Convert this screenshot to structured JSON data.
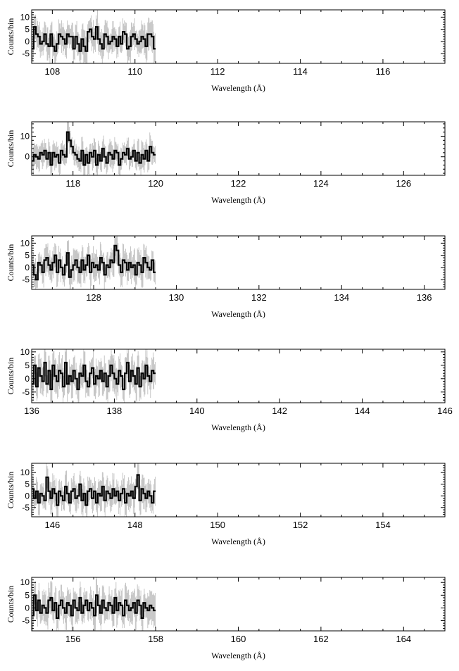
{
  "chart_data": [
    {
      "type": "line",
      "xlabel": "Wavelength (Å)",
      "ylabel": "Counts/bin",
      "xlim": [
        107.5,
        117.5
      ],
      "ylim": [
        -9,
        13
      ],
      "xticks": [
        108,
        110,
        112,
        114,
        116
      ],
      "yticks": [
        -5,
        0,
        5,
        10
      ],
      "x_start": 107.5,
      "bin": 0.05,
      "values": [
        -3,
        6,
        3,
        2,
        -1,
        0,
        3,
        -1,
        -2,
        3,
        -2,
        -4,
        -1,
        3,
        2,
        1,
        -1,
        3,
        2,
        2,
        -3,
        2,
        -1,
        -4,
        1,
        -2,
        -4,
        4,
        5,
        2,
        1,
        6,
        1,
        -1,
        -3,
        3,
        2,
        -1,
        0,
        2,
        1,
        -2,
        2,
        -1,
        4,
        3,
        -3,
        -2,
        2,
        3,
        1,
        -1,
        0,
        2,
        1,
        -2,
        3,
        3,
        2,
        -3
      ]
    },
    {
      "type": "line",
      "xlabel": "Wavelength (Å)",
      "ylabel": "Counts/bin",
      "xlim": [
        117,
        127
      ],
      "ylim": [
        -9,
        17
      ],
      "xticks": [
        118,
        120,
        122,
        124,
        126
      ],
      "yticks": [
        0,
        10
      ],
      "x_start": 117,
      "bin": 0.05,
      "values": [
        -2,
        1,
        0,
        -1,
        2,
        1,
        3,
        -1,
        2,
        -4,
        2,
        0,
        1,
        -3,
        3,
        1,
        0,
        12,
        8,
        5,
        2,
        1,
        -1,
        -2,
        3,
        -4,
        1,
        -3,
        2,
        0,
        3,
        -4,
        1,
        -2,
        4,
        0,
        -3,
        2,
        1,
        -1,
        3,
        2,
        -4,
        -1,
        2,
        1,
        4,
        -1,
        0,
        3,
        -2,
        2,
        -3,
        1,
        -1,
        3,
        -2,
        5,
        2,
        1
      ]
    },
    {
      "type": "line",
      "xlabel": "Wavelength (Å)",
      "ylabel": "Counts/bin",
      "xlim": [
        126.5,
        136.5
      ],
      "ylim": [
        -9,
        13
      ],
      "xticks": [
        128,
        130,
        132,
        134,
        136
      ],
      "yticks": [
        -5,
        0,
        5,
        10
      ],
      "x_start": 126.5,
      "bin": 0.05,
      "values": [
        1,
        -3,
        -5,
        2,
        1,
        -2,
        3,
        4,
        1,
        -1,
        2,
        5,
        -2,
        3,
        0,
        -3,
        1,
        6,
        -4,
        -1,
        1,
        3,
        0,
        -2,
        3,
        -1,
        1,
        5,
        -2,
        2,
        0,
        1,
        -1,
        4,
        2,
        -3,
        1,
        0,
        3,
        2,
        9,
        7,
        1,
        -2,
        3,
        2,
        -1,
        2,
        0,
        1,
        -3,
        2,
        1,
        -2,
        4,
        2,
        0,
        -1,
        3,
        -2
      ]
    },
    {
      "type": "line",
      "xlabel": "Wavelength (Å)",
      "ylabel": "Counts/bin",
      "xlim": [
        136,
        146
      ],
      "ylim": [
        -9,
        11
      ],
      "xticks": [
        136,
        138,
        140,
        142,
        144,
        146
      ],
      "yticks": [
        -5,
        0,
        5,
        10
      ],
      "x_start": 136,
      "bin": 0.05,
      "values": [
        -2,
        5,
        -3,
        4,
        1,
        -1,
        6,
        -2,
        3,
        -4,
        5,
        1,
        -1,
        3,
        2,
        -3,
        6,
        -2,
        1,
        -1,
        3,
        0,
        -4,
        2,
        1,
        5,
        -1,
        -3,
        2,
        4,
        -2,
        1,
        0,
        3,
        -1,
        2,
        -3,
        1,
        5,
        2,
        0,
        -2,
        3,
        1,
        -4,
        2,
        6,
        -1,
        3,
        1,
        -2,
        4,
        -3,
        2,
        0,
        5,
        1,
        -1,
        3,
        2
      ]
    },
    {
      "type": "line",
      "xlabel": "Wavelength (Å)",
      "ylabel": "Counts/bin",
      "xlim": [
        145.5,
        155.5
      ],
      "ylim": [
        -9,
        14
      ],
      "xticks": [
        146,
        148,
        150,
        152,
        154
      ],
      "yticks": [
        -5,
        0,
        5,
        10
      ],
      "x_start": 145.5,
      "bin": 0.05,
      "values": [
        3,
        -1,
        2,
        -3,
        1,
        0,
        -2,
        8,
        2,
        -1,
        3,
        1,
        -4,
        2,
        0,
        -2,
        4,
        1,
        -3,
        2,
        3,
        -1,
        0,
        5,
        -2,
        1,
        -4,
        2,
        3,
        -1,
        2,
        -3,
        1,
        0,
        4,
        -2,
        2,
        1,
        -1,
        3,
        0,
        2,
        -2,
        1,
        3,
        -3,
        1,
        0,
        2,
        -1,
        4,
        9,
        -2,
        3,
        1,
        -1,
        2,
        0,
        -3,
        2
      ]
    },
    {
      "type": "line",
      "xlabel": "Wavelength (Å)",
      "ylabel": "Counts/bin",
      "xlim": [
        155,
        165
      ],
      "ylim": [
        -9,
        12
      ],
      "xticks": [
        156,
        158,
        160,
        162,
        164
      ],
      "yticks": [
        -5,
        0,
        5,
        10
      ],
      "x_start": 155,
      "bin": 0.05,
      "values": [
        -3,
        5,
        -1,
        3,
        -2,
        1,
        0,
        -2,
        3,
        4,
        -1,
        2,
        -4,
        1,
        3,
        0,
        -2,
        2,
        1,
        -3,
        3,
        0,
        -1,
        4,
        -2,
        1,
        3,
        -1,
        2,
        0,
        -3,
        5,
        1,
        -2,
        3,
        0,
        -1,
        2,
        1,
        -2,
        4,
        -1,
        2,
        1,
        -3,
        3,
        1,
        -1,
        0,
        2,
        -2,
        3,
        1,
        -4,
        2,
        0,
        -1,
        1,
        0,
        -1
      ]
    }
  ]
}
